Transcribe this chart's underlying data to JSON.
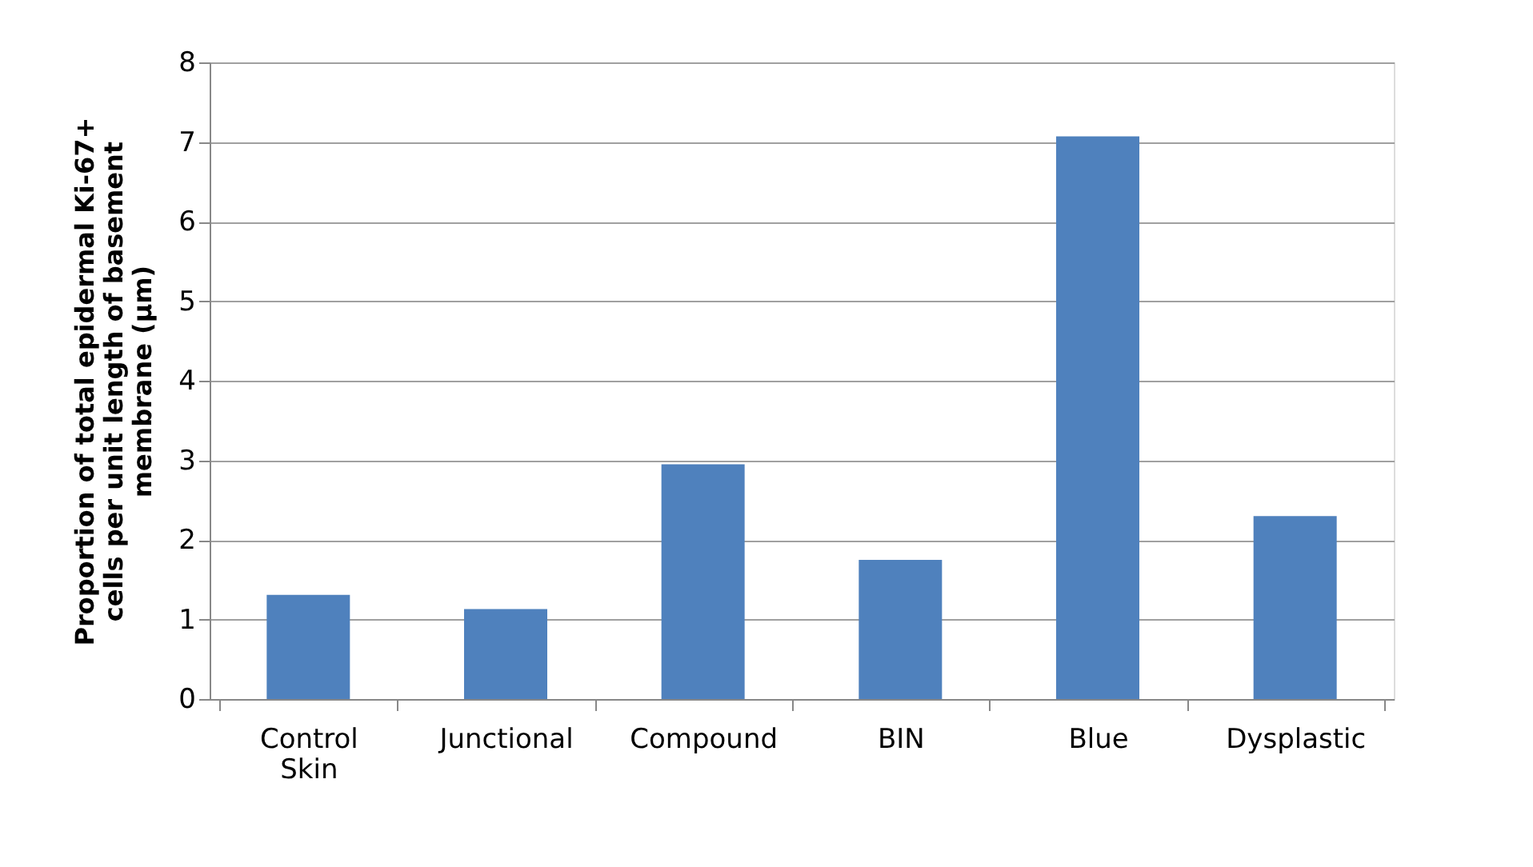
{
  "chart_data": {
    "type": "bar",
    "ylabel": "Proportion of total epidermal Ki-67+ cells per unit length of basement membrane (µm)",
    "categories": [
      "Control Skin",
      "Junctional",
      "Compound",
      "BIN",
      "Blue",
      "Dysplastic"
    ],
    "values": [
      1.31,
      1.13,
      2.95,
      1.75,
      7.07,
      2.3
    ],
    "color": "#4f81bd",
    "ylim": [
      0,
      8
    ],
    "yticks": [
      0,
      1,
      2,
      3,
      4,
      5,
      6,
      7,
      8
    ],
    "grid": "y"
  }
}
